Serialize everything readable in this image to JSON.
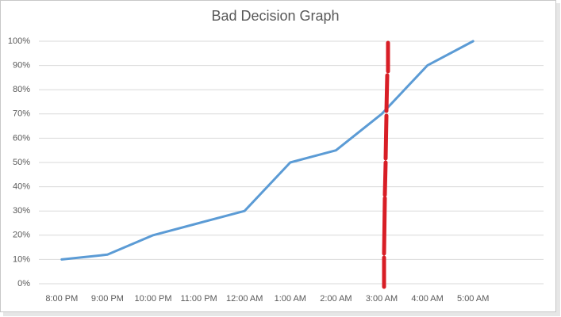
{
  "chart_data": {
    "type": "line",
    "title": "Bad Decision Graph",
    "categories": [
      "8:00 PM",
      "9:00 PM",
      "10:00 PM",
      "11:00 PM",
      "12:00 AM",
      "1:00 AM",
      "2:00 AM",
      "3:00 AM",
      "4:00 AM",
      "5:00 AM"
    ],
    "values": [
      10,
      12,
      20,
      25,
      30,
      50,
      55,
      70,
      90,
      100
    ],
    "color": "#5b9bd5",
    "ylim": [
      0,
      100
    ],
    "yticks": [
      {
        "value": 0,
        "label": "0%"
      },
      {
        "value": 10,
        "label": "10%"
      },
      {
        "value": 20,
        "label": "20%"
      },
      {
        "value": 30,
        "label": "30%"
      },
      {
        "value": 40,
        "label": "40%"
      },
      {
        "value": 50,
        "label": "50%"
      },
      {
        "value": 60,
        "label": "60%"
      },
      {
        "value": 70,
        "label": "70%"
      },
      {
        "value": 80,
        "label": "80%"
      },
      {
        "value": 90,
        "label": "90%"
      },
      {
        "value": 100,
        "label": "100%"
      }
    ],
    "grid": true
  }
}
